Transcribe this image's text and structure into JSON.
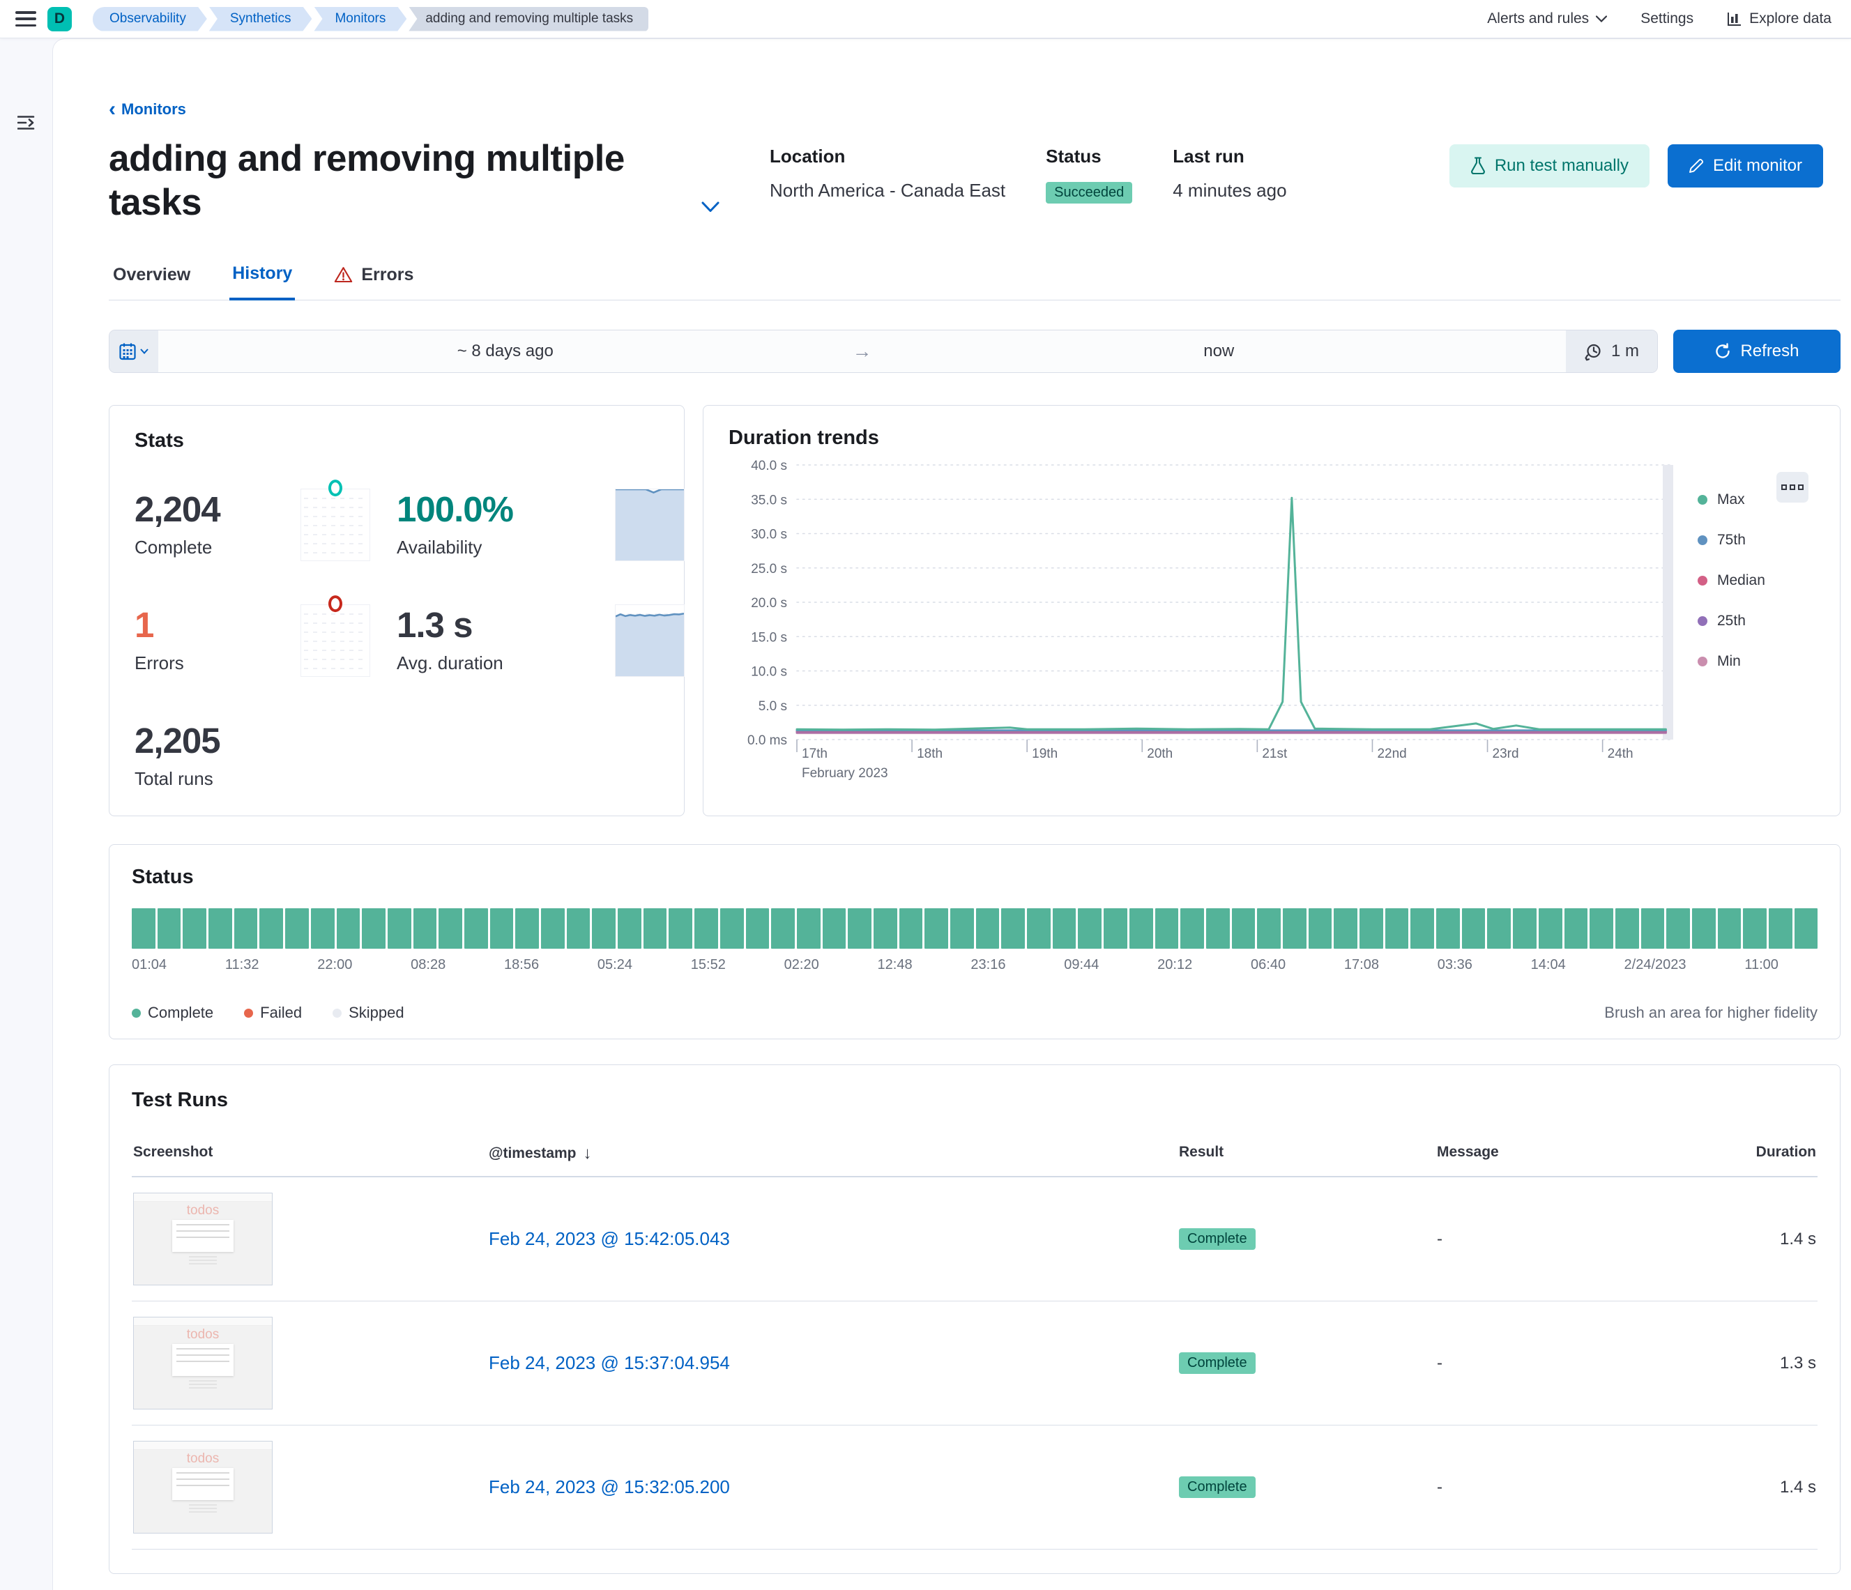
{
  "topbar": {
    "avatar": "D",
    "breadcrumbs": [
      "Observability",
      "Synthetics",
      "Monitors",
      "adding and removing multiple tasks"
    ],
    "alerts_menu": "Alerts and rules",
    "settings": "Settings",
    "explore": "Explore data"
  },
  "header": {
    "back_glyph": "‹",
    "back_link": "Monitors",
    "title": "adding and removing multiple tasks",
    "location_label": "Location",
    "location_value": "North America - Canada East",
    "status_label": "Status",
    "status_value": "Succeeded",
    "last_run_label": "Last run",
    "last_run_value": "4 minutes ago",
    "run_test_button": "Run test manually",
    "edit_button": "Edit monitor"
  },
  "tabs": {
    "overview": "Overview",
    "history": "History",
    "errors": "Errors"
  },
  "datebar": {
    "start": "~ 8 days ago",
    "arrow_glyph": "→",
    "end": "now",
    "interval": "1 m",
    "refresh_label": "Refresh"
  },
  "stats": {
    "title": "Stats",
    "complete": {
      "value": "2,204",
      "label": "Complete"
    },
    "availability": {
      "value": "100.0%",
      "label": "Availability",
      "sparkline": [
        1,
        1,
        1,
        1,
        1,
        0.955,
        1,
        1,
        1,
        1
      ]
    },
    "errors": {
      "value": "1",
      "label": "Errors"
    },
    "avg_duration": {
      "value": "1.3 s",
      "label": "Avg. duration",
      "sparkline": [
        0.84,
        0.87,
        0.845,
        0.86,
        0.85,
        0.862,
        0.848,
        0.858,
        0.85,
        0.865,
        0.852,
        0.86,
        0.872,
        0.868,
        0.88
      ]
    },
    "total_runs": {
      "value": "2,205",
      "label": "Total runs"
    }
  },
  "chart_data": [
    {
      "id": "duration_trends",
      "type": "line",
      "title": "Duration trends",
      "xlabel": "February 2023",
      "ylabel": "",
      "xlim": [
        17,
        24.62
      ],
      "ylim": [
        0,
        40
      ],
      "grid": true,
      "legend_position": "right",
      "y_ticks": [
        "40.0 s",
        "35.0 s",
        "30.0 s",
        "25.0 s",
        "20.0 s",
        "15.0 s",
        "10.0 s",
        "5.0 s",
        "0.0 ms"
      ],
      "y_tick_values": [
        40,
        35,
        30,
        25,
        20,
        15,
        10,
        5,
        0
      ],
      "x_ticks": [
        "17th",
        "18th",
        "19th",
        "20th",
        "21st",
        "22nd",
        "23rd",
        "24th"
      ],
      "x_tick_values": [
        17,
        18,
        19,
        20,
        21,
        22,
        23,
        24
      ],
      "series": [
        {
          "name": "Min",
          "color": "#ca8eae",
          "x": [
            17,
            24.55
          ],
          "values": [
            0.95,
            0.95
          ]
        },
        {
          "name": "25th",
          "color": "#9170b8",
          "x": [
            17,
            24.55
          ],
          "values": [
            1.08,
            1.08
          ]
        },
        {
          "name": "Median",
          "color": "#d36086",
          "x": [
            17,
            24.55
          ],
          "values": [
            1.2,
            1.2
          ]
        },
        {
          "name": "75th",
          "color": "#6092c0",
          "x": [
            17,
            24.55
          ],
          "values": [
            1.33,
            1.33
          ]
        },
        {
          "name": "Max",
          "color": "#54b399",
          "x": [
            17,
            17.4,
            17.8,
            18.2,
            18.85,
            19.0,
            19.5,
            19.95,
            20.4,
            20.85,
            21.1,
            21.22,
            21.3,
            21.38,
            21.5,
            22.0,
            22.5,
            22.9,
            23.05,
            23.25,
            23.45,
            23.9,
            24.55
          ],
          "values": [
            1.5,
            1.45,
            1.5,
            1.45,
            1.75,
            1.5,
            1.5,
            1.6,
            1.5,
            1.55,
            1.5,
            5.5,
            35.2,
            5.5,
            1.6,
            1.5,
            1.5,
            2.35,
            1.55,
            2.05,
            1.5,
            1.5,
            1.5
          ]
        }
      ]
    },
    {
      "id": "status_timeline",
      "type": "heatmap",
      "title": "Status",
      "bucket_count": 66,
      "bucket_status": "complete",
      "x_ticks": [
        "01:04",
        "11:32",
        "22:00",
        "08:28",
        "18:56",
        "05:24",
        "15:52",
        "02:20",
        "12:48",
        "23:16",
        "09:44",
        "20:12",
        "06:40",
        "17:08",
        "03:36",
        "14:04",
        "2/24/2023",
        "11:00"
      ],
      "legend": [
        {
          "label": "Complete",
          "color": "#54b399"
        },
        {
          "label": "Failed",
          "color": "#e7664c"
        },
        {
          "label": "Skipped",
          "color": "#e8ebf1"
        }
      ],
      "hint": "Brush an area for higher fidelity"
    }
  ],
  "test_runs": {
    "title": "Test Runs",
    "columns": {
      "screenshot": "Screenshot",
      "timestamp": "@timestamp",
      "result": "Result",
      "message": "Message",
      "duration": "Duration"
    },
    "sort_glyph": "↓",
    "thumbnail_title": "todos",
    "rows": [
      {
        "timestamp": "Feb 24, 2023 @ 15:42:05.043",
        "result": "Complete",
        "message": "-",
        "duration": "1.4 s"
      },
      {
        "timestamp": "Feb 24, 2023 @ 15:37:04.954",
        "result": "Complete",
        "message": "-",
        "duration": "1.3 s"
      },
      {
        "timestamp": "Feb 24, 2023 @ 15:32:05.200",
        "result": "Complete",
        "message": "-",
        "duration": "1.4 s"
      }
    ]
  },
  "colors": {
    "link": "#0061c4",
    "primary_button": "#0b6fd0",
    "success_badge": "#6dccb1",
    "complete_green": "#54b399",
    "error_orange": "#e7664c",
    "avatar_teal": "#00bfb3",
    "availability_text": "#00857c",
    "sparkline_blue": "#6092c0",
    "sparkline_fill": "#cddcee"
  }
}
